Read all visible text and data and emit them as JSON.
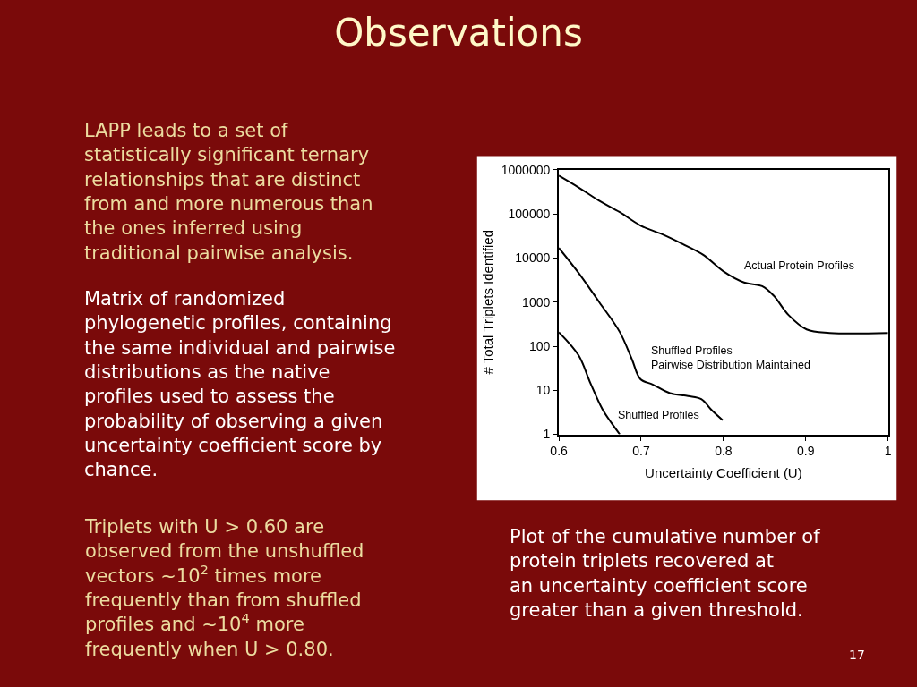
{
  "chart_data": {
    "type": "line",
    "title": "Observations",
    "xlabel": "Uncertainty Coefficient (U)",
    "ylabel": "# Total Triplets Identified",
    "log": "y",
    "xlim": [
      0.6,
      1
    ],
    "xticks": [
      0.6,
      0.7,
      0.8,
      0.9,
      1
    ],
    "ylim": [
      1,
      1000000
    ],
    "yticks": [
      1,
      10,
      100,
      1000,
      10000,
      100000,
      1000000
    ],
    "marker": "none",
    "line_style": "solid",
    "series": [
      {
        "color": "#000000",
        "x": [
          0.6,
          0.624,
          0.649,
          0.674,
          0.699,
          0.725,
          0.75,
          0.775,
          0.8,
          0.825,
          0.847,
          0.861,
          0.879,
          0.901,
          0.929,
          1.0
        ],
        "values": [
          740000,
          400000,
          200000,
          110000,
          55000,
          35000,
          21000,
          12000,
          5000,
          2800,
          2300,
          1400,
          510,
          240,
          200,
          200
        ]
      },
      {
        "color": "#000000",
        "x": [
          0.6,
          0.624,
          0.649,
          0.674,
          0.689,
          0.699,
          0.714,
          0.735,
          0.757,
          0.773,
          0.786,
          0.799
        ],
        "values": [
          17000,
          4600,
          1000,
          210,
          49,
          18,
          13.5,
          8.6,
          7.4,
          6.3,
          3.5,
          2.1
        ]
      },
      {
        "color": "#000000",
        "x": [
          0.6,
          0.624,
          0.638,
          0.653,
          0.664,
          0.674
        ],
        "values": [
          208,
          62,
          15,
          3.7,
          1.8,
          1.0
        ]
      }
    ],
    "annotations": [
      "Actual Protein Profiles",
      "Shuffled Profiles\nPairwise Distribution Maintained",
      "Shuffled Profiles",
      "LAPP leads to a set of\nstatistically significant ternary\nrelationships that are distinct\nfrom and more numerous than\nthe ones inferred using\ntraditional pairwise analysis.",
      "Matrix of randomized\nphylogenetic profiles, containing\nthe same individual and pairwise\ndistributions as the native\nprofiles used to assess the\nprobability of observing a given\nuncertainty coefficient score by\nchance.",
      "Triplets with U > 0.60 are\nobserved from the unshuffled\nvectors ~10$^{2}$ times more\nfrequently than from shuffled\nprofiles and ~10$^{4}$ more\nfrequently when U > 0.80.",
      "Plot of the cumulative number of\nprotein triplets recovered at\nan uncertainty coefficient score\ngreater than a given threshold.",
      "17"
    ]
  }
}
